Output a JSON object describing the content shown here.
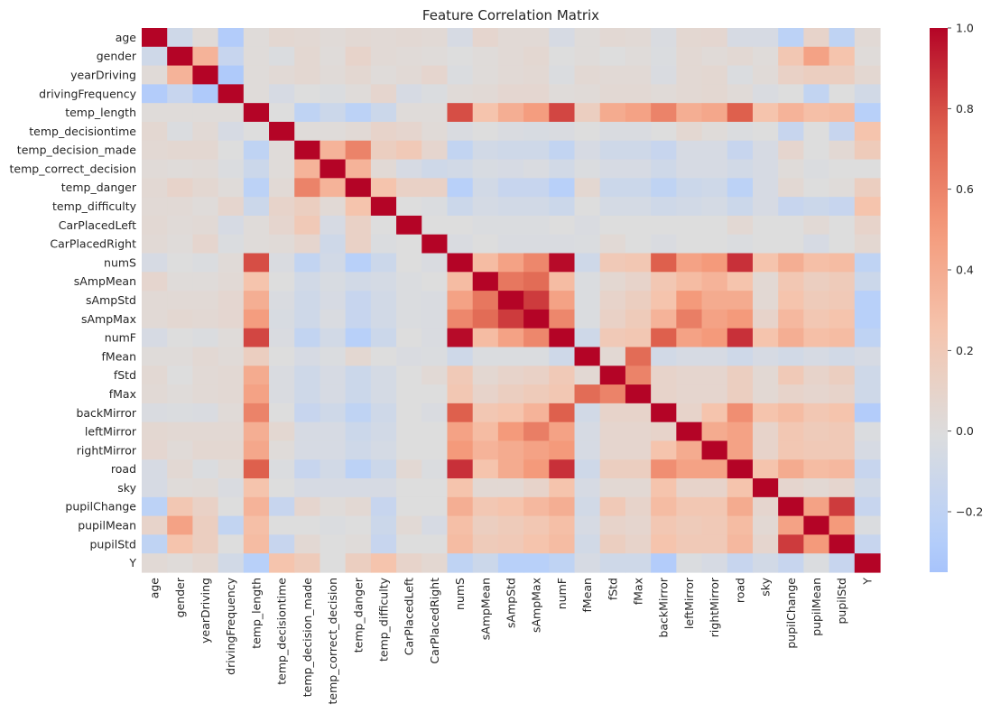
{
  "chart_data": {
    "type": "heatmap",
    "title": "Feature Correlation Matrix",
    "labels": [
      "age",
      "gender",
      "yearDriving",
      "drivingFrequency",
      "temp_length",
      "temp_decisiontime",
      "temp_decision_made",
      "temp_correct_decision",
      "temp_danger",
      "temp_difficulty",
      "CarPlacedLeft",
      "CarPlacedRight",
      "numS",
      "sAmpMean",
      "sAmpStd",
      "sAmpMax",
      "numF",
      "fMean",
      "fStd",
      "fMax",
      "backMirror",
      "leftMirror",
      "rightMirror",
      "road",
      "sky",
      "pupilChange",
      "pupilMean",
      "pupilStd",
      "Y"
    ],
    "colormap": "coolwarm",
    "vmin": -0.35,
    "vmax": 1.0,
    "colorbar_ticks": [
      {
        "value": 1.0,
        "label": "1.0"
      },
      {
        "value": 0.8,
        "label": "0.8"
      },
      {
        "value": 0.6,
        "label": "0.6"
      },
      {
        "value": 0.4,
        "label": "0.4"
      },
      {
        "value": 0.2,
        "label": "0.2"
      },
      {
        "value": 0.0,
        "label": "0.0"
      },
      {
        "value": -0.2,
        "label": "−0.2"
      }
    ],
    "matrix": [
      [
        1.0,
        -0.1,
        0.03,
        -0.28,
        0.02,
        0.06,
        0.05,
        0.03,
        0.05,
        0.04,
        0.05,
        0.04,
        -0.05,
        0.08,
        0.04,
        0.04,
        -0.05,
        0.02,
        0.05,
        0.04,
        -0.03,
        0.06,
        0.07,
        -0.05,
        -0.05,
        -0.22,
        0.1,
        -0.2,
        0.04
      ],
      [
        -0.1,
        1.0,
        0.35,
        -0.15,
        0.02,
        -0.02,
        0.06,
        0.02,
        0.1,
        0.04,
        0.03,
        0.02,
        0.0,
        0.02,
        0.04,
        0.06,
        0.0,
        0.02,
        0.0,
        0.02,
        -0.02,
        0.05,
        0.03,
        0.05,
        0.02,
        0.22,
        0.45,
        0.25,
        0.02
      ],
      [
        0.03,
        0.35,
        1.0,
        -0.3,
        0.02,
        0.04,
        0.06,
        0.03,
        0.06,
        0.02,
        0.04,
        0.08,
        -0.02,
        0.02,
        0.04,
        0.05,
        -0.02,
        0.05,
        0.04,
        0.04,
        -0.03,
        0.05,
        0.06,
        -0.02,
        0.03,
        0.12,
        0.15,
        0.15,
        0.06
      ],
      [
        -0.28,
        -0.15,
        -0.3,
        1.0,
        0.02,
        -0.05,
        0.0,
        -0.02,
        0.02,
        0.08,
        -0.05,
        -0.02,
        0.03,
        0.04,
        0.07,
        0.07,
        0.02,
        0.03,
        0.05,
        0.05,
        0.03,
        0.05,
        0.06,
        0.03,
        -0.03,
        0.0,
        -0.18,
        0.0,
        -0.08
      ],
      [
        0.02,
        0.02,
        0.02,
        0.02,
        1.0,
        0.0,
        -0.2,
        -0.12,
        -0.22,
        -0.12,
        0.02,
        0.02,
        0.8,
        0.25,
        0.38,
        0.48,
        0.82,
        0.15,
        0.4,
        0.45,
        0.6,
        0.38,
        0.42,
        0.75,
        0.25,
        0.35,
        0.28,
        0.3,
        -0.25
      ],
      [
        0.06,
        -0.02,
        0.04,
        -0.05,
        0.0,
        1.0,
        0.02,
        0.02,
        0.04,
        0.1,
        0.08,
        0.03,
        -0.03,
        0.0,
        -0.03,
        -0.04,
        -0.03,
        0.0,
        -0.03,
        -0.03,
        0.0,
        0.06,
        0.02,
        -0.02,
        0.0,
        -0.15,
        0.0,
        -0.15,
        0.25
      ],
      [
        0.05,
        0.06,
        0.06,
        0.0,
        -0.2,
        0.02,
        1.0,
        0.35,
        0.6,
        0.15,
        0.2,
        0.08,
        -0.18,
        -0.08,
        -0.1,
        -0.1,
        -0.18,
        -0.05,
        -0.1,
        -0.1,
        -0.15,
        -0.05,
        -0.05,
        -0.15,
        -0.05,
        0.08,
        0.0,
        0.05,
        0.18
      ],
      [
        0.03,
        0.02,
        0.03,
        -0.02,
        -0.12,
        0.02,
        0.35,
        1.0,
        0.35,
        0.04,
        -0.05,
        -0.1,
        -0.08,
        -0.04,
        -0.05,
        -0.03,
        -0.08,
        -0.02,
        -0.05,
        -0.05,
        -0.1,
        -0.05,
        -0.05,
        -0.08,
        -0.05,
        0.02,
        -0.02,
        0.0,
        0.0
      ],
      [
        0.05,
        0.1,
        0.06,
        0.02,
        -0.22,
        0.04,
        0.6,
        0.35,
        1.0,
        0.25,
        0.12,
        0.12,
        -0.25,
        -0.08,
        -0.15,
        -0.15,
        -0.25,
        0.06,
        -0.12,
        -0.12,
        -0.2,
        -0.12,
        -0.1,
        -0.22,
        -0.05,
        0.05,
        0.0,
        0.02,
        0.15
      ],
      [
        0.04,
        0.04,
        0.02,
        0.08,
        -0.12,
        0.1,
        0.15,
        0.04,
        0.25,
        1.0,
        0.0,
        -0.02,
        -0.12,
        -0.06,
        -0.08,
        -0.08,
        -0.12,
        0.0,
        -0.06,
        -0.06,
        -0.1,
        -0.08,
        -0.06,
        -0.12,
        -0.05,
        -0.15,
        -0.12,
        -0.15,
        0.25
      ],
      [
        0.05,
        0.03,
        0.04,
        -0.05,
        0.02,
        0.08,
        0.2,
        -0.05,
        0.12,
        0.0,
        1.0,
        0.0,
        0.0,
        -0.02,
        -0.02,
        -0.02,
        0.0,
        -0.03,
        0.0,
        0.0,
        0.0,
        0.0,
        0.0,
        0.05,
        0.0,
        0.0,
        0.04,
        0.0,
        0.1
      ],
      [
        0.04,
        0.02,
        0.08,
        -0.02,
        0.02,
        0.03,
        0.08,
        -0.1,
        0.12,
        -0.02,
        0.0,
        1.0,
        -0.03,
        0.0,
        -0.03,
        -0.03,
        -0.03,
        -0.02,
        0.04,
        0.0,
        -0.03,
        0.0,
        0.0,
        -0.02,
        0.0,
        0.0,
        -0.05,
        0.0,
        0.06
      ],
      [
        -0.05,
        0.0,
        -0.02,
        0.03,
        0.8,
        -0.03,
        -0.18,
        -0.08,
        -0.25,
        -0.12,
        0.0,
        -0.03,
        1.0,
        0.3,
        0.45,
        0.58,
        0.98,
        -0.1,
        0.2,
        0.22,
        0.75,
        0.45,
        0.5,
        0.88,
        0.25,
        0.38,
        0.28,
        0.3,
        -0.2
      ],
      [
        0.08,
        0.02,
        0.02,
        0.04,
        0.25,
        0.0,
        -0.08,
        -0.04,
        -0.08,
        -0.06,
        -0.02,
        0.0,
        0.3,
        1.0,
        0.65,
        0.7,
        0.3,
        -0.02,
        0.06,
        0.1,
        0.22,
        0.3,
        0.35,
        0.25,
        0.05,
        0.22,
        0.15,
        0.18,
        -0.12
      ],
      [
        0.04,
        0.04,
        0.04,
        0.07,
        0.38,
        -0.03,
        -0.1,
        -0.05,
        -0.15,
        -0.08,
        -0.02,
        -0.03,
        0.45,
        0.65,
        1.0,
        0.85,
        0.45,
        -0.02,
        0.1,
        0.15,
        0.25,
        0.5,
        0.4,
        0.4,
        0.05,
        0.25,
        0.18,
        0.2,
        -0.25
      ],
      [
        0.04,
        0.06,
        0.05,
        0.07,
        0.48,
        -0.04,
        -0.1,
        -0.03,
        -0.15,
        -0.08,
        -0.02,
        -0.03,
        0.58,
        0.7,
        0.85,
        1.0,
        0.58,
        -0.02,
        0.12,
        0.18,
        0.35,
        0.62,
        0.45,
        0.5,
        0.1,
        0.32,
        0.22,
        0.25,
        -0.25
      ],
      [
        -0.05,
        0.0,
        -0.02,
        0.02,
        0.82,
        -0.03,
        -0.18,
        -0.08,
        -0.25,
        -0.12,
        0.0,
        -0.03,
        0.98,
        0.3,
        0.45,
        0.58,
        1.0,
        -0.1,
        0.2,
        0.22,
        0.75,
        0.45,
        0.5,
        0.88,
        0.25,
        0.38,
        0.28,
        0.3,
        -0.2
      ],
      [
        0.02,
        0.02,
        0.05,
        0.03,
        0.15,
        0.0,
        -0.05,
        -0.02,
        0.06,
        0.0,
        -0.03,
        -0.02,
        -0.1,
        -0.02,
        -0.02,
        -0.02,
        -0.1,
        1.0,
        0.05,
        0.7,
        -0.08,
        -0.05,
        -0.05,
        -0.1,
        -0.05,
        -0.08,
        -0.05,
        -0.08,
        -0.05
      ],
      [
        0.05,
        0.0,
        0.04,
        0.05,
        0.4,
        -0.03,
        -0.1,
        -0.05,
        -0.12,
        -0.06,
        0.0,
        0.04,
        0.2,
        0.06,
        0.1,
        0.12,
        0.2,
        0.05,
        1.0,
        0.6,
        0.1,
        0.08,
        0.08,
        0.15,
        0.05,
        0.2,
        0.1,
        0.15,
        -0.1
      ],
      [
        0.04,
        0.02,
        0.04,
        0.05,
        0.45,
        -0.03,
        -0.1,
        -0.05,
        -0.12,
        -0.06,
        0.0,
        0.0,
        0.22,
        0.1,
        0.15,
        0.18,
        0.22,
        0.7,
        0.6,
        1.0,
        0.1,
        0.08,
        0.08,
        0.15,
        0.05,
        0.1,
        0.08,
        0.1,
        -0.1
      ],
      [
        -0.03,
        -0.02,
        -0.03,
        0.03,
        0.6,
        0.0,
        -0.15,
        -0.1,
        -0.2,
        -0.1,
        0.0,
        -0.03,
        0.75,
        0.22,
        0.25,
        0.35,
        0.75,
        -0.08,
        0.1,
        0.1,
        1.0,
        0.1,
        0.25,
        0.55,
        0.25,
        0.3,
        0.22,
        0.25,
        -0.28
      ],
      [
        0.06,
        0.05,
        0.05,
        0.05,
        0.38,
        0.06,
        -0.05,
        -0.05,
        -0.12,
        -0.08,
        0.0,
        0.0,
        0.45,
        0.3,
        0.5,
        0.62,
        0.45,
        -0.05,
        0.08,
        0.08,
        0.1,
        1.0,
        0.4,
        0.45,
        0.1,
        0.22,
        0.18,
        0.2,
        -0.02
      ],
      [
        0.07,
        0.03,
        0.06,
        0.06,
        0.42,
        0.02,
        -0.05,
        -0.05,
        -0.1,
        -0.06,
        0.0,
        0.0,
        0.5,
        0.35,
        0.4,
        0.45,
        0.5,
        -0.05,
        0.08,
        0.08,
        0.25,
        0.4,
        1.0,
        0.45,
        0.1,
        0.22,
        0.2,
        0.2,
        -0.05
      ],
      [
        -0.05,
        0.05,
        -0.02,
        0.03,
        0.75,
        -0.02,
        -0.15,
        -0.08,
        -0.22,
        -0.12,
        0.05,
        -0.02,
        0.88,
        0.25,
        0.4,
        0.5,
        0.88,
        -0.1,
        0.15,
        0.15,
        0.55,
        0.45,
        0.45,
        1.0,
        0.25,
        0.4,
        0.3,
        0.32,
        -0.15
      ],
      [
        -0.05,
        0.02,
        0.03,
        -0.03,
        0.25,
        0.0,
        -0.05,
        -0.05,
        -0.05,
        -0.05,
        0.0,
        0.0,
        0.25,
        0.05,
        0.05,
        0.1,
        0.25,
        -0.05,
        0.05,
        0.05,
        0.25,
        0.1,
        0.1,
        0.25,
        1.0,
        0.08,
        0.05,
        0.08,
        -0.08
      ],
      [
        -0.22,
        0.22,
        0.12,
        0.0,
        0.35,
        -0.15,
        0.08,
        0.02,
        0.05,
        -0.15,
        0.0,
        0.0,
        0.38,
        0.22,
        0.25,
        0.32,
        0.38,
        -0.08,
        0.2,
        0.1,
        0.3,
        0.22,
        0.22,
        0.4,
        0.08,
        1.0,
        0.45,
        0.85,
        -0.15
      ],
      [
        0.1,
        0.45,
        0.15,
        -0.18,
        0.28,
        0.0,
        0.0,
        -0.02,
        0.0,
        -0.12,
        0.04,
        -0.05,
        0.28,
        0.15,
        0.18,
        0.22,
        0.28,
        -0.05,
        0.1,
        0.08,
        0.22,
        0.18,
        0.2,
        0.3,
        0.05,
        0.45,
        1.0,
        0.5,
        -0.02
      ],
      [
        -0.2,
        0.25,
        0.15,
        0.0,
        0.3,
        -0.15,
        0.05,
        0.0,
        0.02,
        -0.15,
        0.0,
        0.0,
        0.3,
        0.18,
        0.2,
        0.25,
        0.3,
        -0.08,
        0.15,
        0.1,
        0.25,
        0.2,
        0.2,
        0.32,
        0.08,
        0.85,
        0.5,
        1.0,
        -0.15
      ],
      [
        0.04,
        0.02,
        0.06,
        -0.08,
        -0.25,
        0.25,
        0.18,
        0.0,
        0.15,
        0.25,
        0.1,
        0.06,
        -0.2,
        -0.12,
        -0.25,
        -0.25,
        -0.2,
        -0.05,
        -0.1,
        -0.1,
        -0.28,
        -0.02,
        -0.05,
        -0.15,
        -0.08,
        -0.15,
        -0.02,
        -0.15,
        1.0
      ]
    ]
  }
}
